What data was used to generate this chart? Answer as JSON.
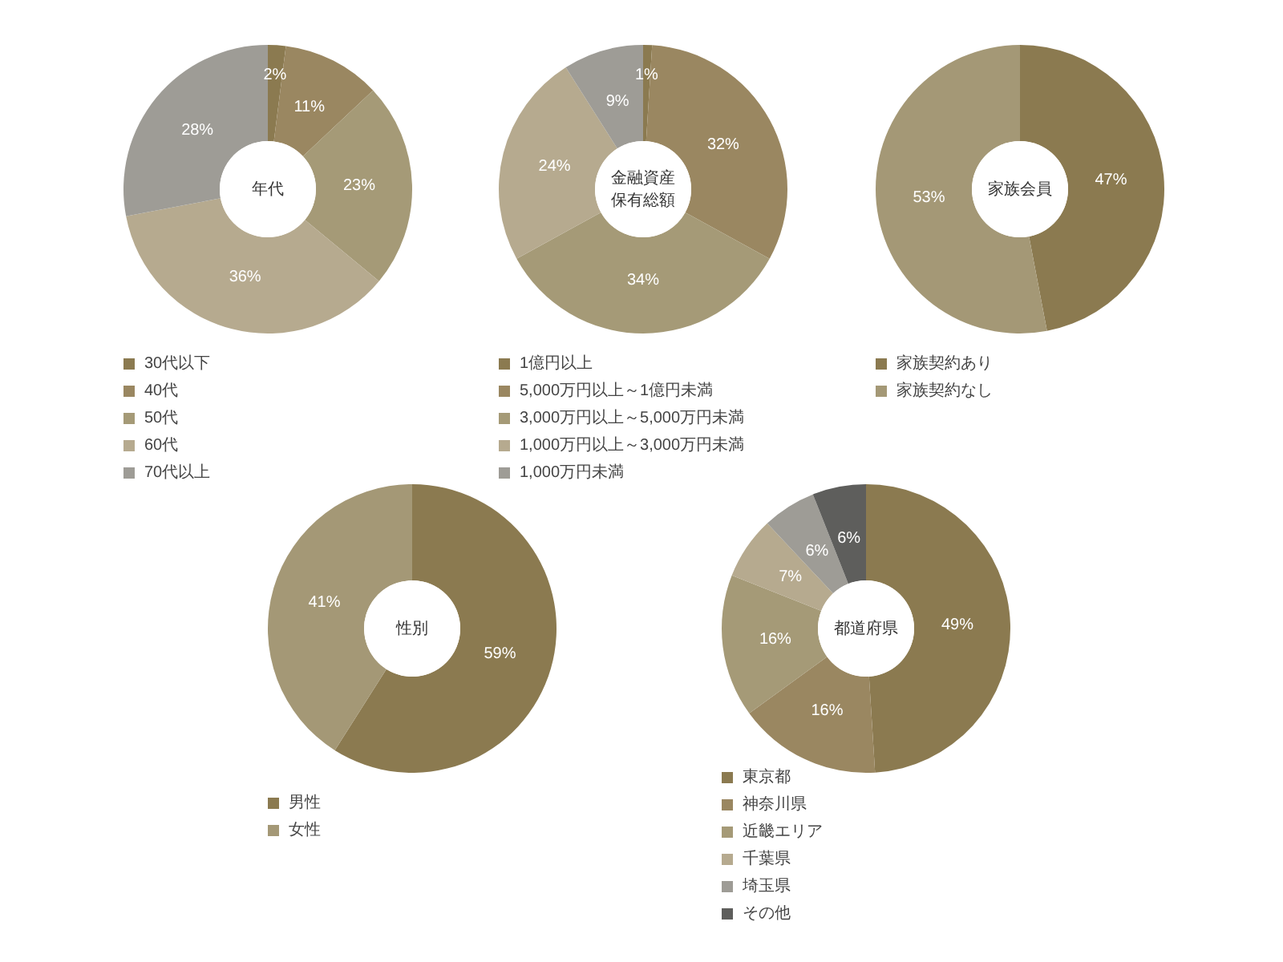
{
  "chart_data": [
    {
      "type": "donut",
      "title": "年代",
      "categories": [
        "30代以下",
        "40代",
        "50代",
        "60代",
        "70代以上"
      ],
      "values": [
        2,
        11,
        23,
        36,
        28
      ],
      "colors": [
        "#8b7a50",
        "#9a8761",
        "#a59a77",
        "#b6aa8f",
        "#9e9c96"
      ],
      "value_labels": [
        "2%",
        "11%",
        "23%",
        "36%",
        "28%"
      ],
      "legend": "bottom"
    },
    {
      "type": "donut",
      "title": "金融資産保有総額",
      "categories": [
        "1億円以上",
        "5,000万円以上～1億円未満",
        "3,000万円以上～5,000万円未満",
        "1,000万円以上～3,000万円未満",
        "1,000万円未満"
      ],
      "values": [
        1,
        32,
        34,
        24,
        9
      ],
      "colors": [
        "#8b7a50",
        "#9a8761",
        "#a59a77",
        "#b6aa8f",
        "#9e9c96"
      ],
      "value_labels": [
        "1%",
        "32%",
        "34%",
        "24%",
        "9%"
      ],
      "legend": "bottom"
    },
    {
      "type": "donut",
      "title": "家族会員",
      "categories": [
        "家族契約あり",
        "家族契約なし"
      ],
      "values": [
        47,
        53
      ],
      "colors": [
        "#8b7a50",
        "#a49876"
      ],
      "value_labels": [
        "47%",
        "53%"
      ],
      "legend": "bottom"
    },
    {
      "type": "donut",
      "title": "性別",
      "categories": [
        "男性",
        "女性"
      ],
      "values": [
        59,
        41
      ],
      "colors": [
        "#8b7a50",
        "#a49876"
      ],
      "value_labels": [
        "59%",
        "41%"
      ],
      "legend": "bottom"
    },
    {
      "type": "donut",
      "title": "都道府県",
      "categories": [
        "東京都",
        "神奈川県",
        "近畿エリア",
        "千葉県",
        "埼玉県",
        "その他"
      ],
      "values": [
        49,
        16,
        16,
        7,
        6,
        6
      ],
      "colors": [
        "#8b7a50",
        "#9a8761",
        "#a59a77",
        "#b6aa8f",
        "#9e9c96",
        "#5e5e5c"
      ],
      "value_labels": [
        "49%",
        "16%",
        "16%",
        "7%",
        "6%",
        "6%"
      ],
      "legend": "bottom"
    }
  ]
}
